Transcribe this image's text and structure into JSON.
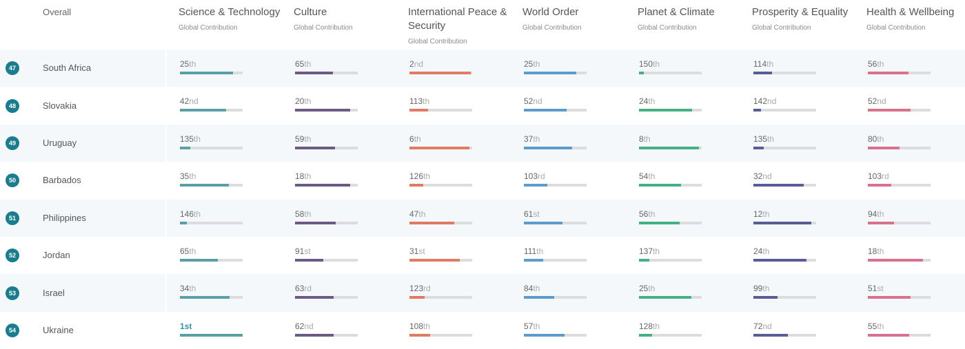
{
  "header": {
    "overall": "Overall",
    "subtitle": "Global Contribution",
    "columns": [
      {
        "key": "science",
        "label": "Science & Technology",
        "color": "#5a9fa6"
      },
      {
        "key": "culture",
        "label": "Culture",
        "color": "#6b5a85"
      },
      {
        "key": "peace",
        "label": "International Peace & Security",
        "color": "#e07a62"
      },
      {
        "key": "order",
        "label": "World Order",
        "color": "#5c9ccb"
      },
      {
        "key": "planet",
        "label": "Planet & Climate",
        "color": "#45b083"
      },
      {
        "key": "prosperity",
        "label": "Prosperity & Equality",
        "color": "#5a5c96"
      },
      {
        "key": "health",
        "label": "Health & Wellbeing",
        "color": "#d8708e"
      }
    ]
  },
  "rows": [
    {
      "rank": "47",
      "country": "South Africa",
      "values": [
        {
          "n": "25",
          "s": "th",
          "f": 0.85
        },
        {
          "n": "65",
          "s": "th",
          "f": 0.6
        },
        {
          "n": "2",
          "s": "nd",
          "f": 0.98
        },
        {
          "n": "25",
          "s": "th",
          "f": 0.84
        },
        {
          "n": "150",
          "s": "th",
          "f": 0.08
        },
        {
          "n": "114",
          "s": "th",
          "f": 0.3
        },
        {
          "n": "56",
          "s": "th",
          "f": 0.65
        }
      ]
    },
    {
      "rank": "48",
      "country": "Slovakia",
      "values": [
        {
          "n": "42",
          "s": "nd",
          "f": 0.74
        },
        {
          "n": "20",
          "s": "th",
          "f": 0.88
        },
        {
          "n": "113",
          "s": "th",
          "f": 0.3
        },
        {
          "n": "52",
          "s": "nd",
          "f": 0.68
        },
        {
          "n": "24",
          "s": "th",
          "f": 0.85
        },
        {
          "n": "142",
          "s": "nd",
          "f": 0.12
        },
        {
          "n": "52",
          "s": "nd",
          "f": 0.68
        }
      ]
    },
    {
      "rank": "49",
      "country": "Uruguay",
      "values": [
        {
          "n": "135",
          "s": "th",
          "f": 0.17
        },
        {
          "n": "59",
          "s": "th",
          "f": 0.64
        },
        {
          "n": "6",
          "s": "th",
          "f": 0.96
        },
        {
          "n": "37",
          "s": "th",
          "f": 0.77
        },
        {
          "n": "8",
          "s": "th",
          "f": 0.96
        },
        {
          "n": "135",
          "s": "th",
          "f": 0.17
        },
        {
          "n": "80",
          "s": "th",
          "f": 0.5
        }
      ]
    },
    {
      "rank": "50",
      "country": "Barbados",
      "values": [
        {
          "n": "35",
          "s": "th",
          "f": 0.78
        },
        {
          "n": "18",
          "s": "th",
          "f": 0.88
        },
        {
          "n": "126",
          "s": "th",
          "f": 0.22
        },
        {
          "n": "103",
          "s": "rd",
          "f": 0.37
        },
        {
          "n": "54",
          "s": "th",
          "f": 0.67
        },
        {
          "n": "32",
          "s": "nd",
          "f": 0.8
        },
        {
          "n": "103",
          "s": "rd",
          "f": 0.37
        }
      ]
    },
    {
      "rank": "51",
      "country": "Philippines",
      "values": [
        {
          "n": "146",
          "s": "th",
          "f": 0.11
        },
        {
          "n": "58",
          "s": "th",
          "f": 0.65
        },
        {
          "n": "47",
          "s": "th",
          "f": 0.71
        },
        {
          "n": "61",
          "s": "st",
          "f": 0.62
        },
        {
          "n": "56",
          "s": "th",
          "f": 0.65
        },
        {
          "n": "12",
          "s": "th",
          "f": 0.92
        },
        {
          "n": "94",
          "s": "th",
          "f": 0.42
        }
      ]
    },
    {
      "rank": "52",
      "country": "Jordan",
      "values": [
        {
          "n": "65",
          "s": "th",
          "f": 0.6
        },
        {
          "n": "91",
          "s": "st",
          "f": 0.45
        },
        {
          "n": "31",
          "s": "st",
          "f": 0.8
        },
        {
          "n": "111",
          "s": "th",
          "f": 0.31
        },
        {
          "n": "137",
          "s": "th",
          "f": 0.16
        },
        {
          "n": "24",
          "s": "th",
          "f": 0.85
        },
        {
          "n": "18",
          "s": "th",
          "f": 0.88
        }
      ]
    },
    {
      "rank": "53",
      "country": "Israel",
      "values": [
        {
          "n": "34",
          "s": "th",
          "f": 0.79
        },
        {
          "n": "63",
          "s": "rd",
          "f": 0.61
        },
        {
          "n": "123",
          "s": "rd",
          "f": 0.24
        },
        {
          "n": "84",
          "s": "th",
          "f": 0.48
        },
        {
          "n": "25",
          "s": "th",
          "f": 0.84
        },
        {
          "n": "99",
          "s": "th",
          "f": 0.39
        },
        {
          "n": "51",
          "s": "st",
          "f": 0.68
        }
      ]
    },
    {
      "rank": "54",
      "country": "Ukraine",
      "values": [
        {
          "n": "1",
          "s": "st",
          "f": 1.0
        },
        {
          "n": "62",
          "s": "nd",
          "f": 0.61
        },
        {
          "n": "108",
          "s": "th",
          "f": 0.33
        },
        {
          "n": "57",
          "s": "th",
          "f": 0.65
        },
        {
          "n": "128",
          "s": "th",
          "f": 0.21
        },
        {
          "n": "72",
          "s": "nd",
          "f": 0.55
        },
        {
          "n": "55",
          "s": "th",
          "f": 0.66
        }
      ]
    }
  ]
}
